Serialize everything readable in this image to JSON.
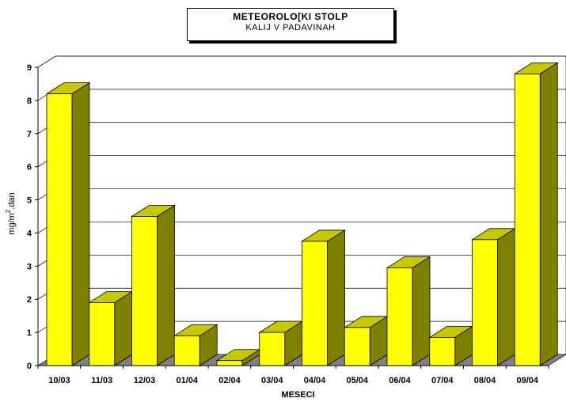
{
  "title_box": {
    "title": "METEOROLO[KI STOLP",
    "subtitle": "KALIJ V PADAVINAH"
  },
  "chart_data": {
    "type": "bar",
    "title": "METEOROLO[KI STOLP",
    "subtitle": "KALIJ V PADAVINAH",
    "xlabel": "MESECI",
    "ylabel_main": "mg/m",
    "ylabel_sup": "2",
    "ylabel_tail": ".dan",
    "ylim": [
      0,
      9
    ],
    "yticks": [
      0,
      1,
      2,
      3,
      4,
      5,
      6,
      7,
      8,
      9
    ],
    "grid": true,
    "categories": [
      "10/03",
      "11/03",
      "12/03",
      "01/04",
      "02/04",
      "03/04",
      "04/04",
      "05/04",
      "06/04",
      "07/04",
      "08/04",
      "09/04"
    ],
    "values": [
      8.2,
      1.9,
      4.5,
      0.9,
      0.15,
      1.0,
      3.75,
      1.15,
      2.95,
      0.85,
      3.8,
      8.8
    ],
    "colors": {
      "bar_front": "#ffff00",
      "bar_top": "#c8c800",
      "bar_side": "#808000",
      "floor": "#808080"
    }
  }
}
